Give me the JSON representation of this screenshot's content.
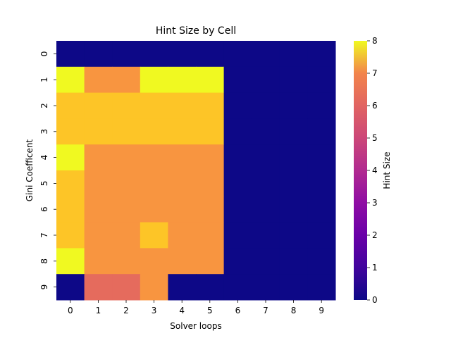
{
  "chart_data": {
    "type": "heatmap",
    "title": "Hint Size by Cell",
    "xlabel": "Solver loops",
    "ylabel": "Gini Coefficent",
    "x_categories": [
      "0",
      "1",
      "2",
      "3",
      "4",
      "5",
      "6",
      "7",
      "8",
      "9"
    ],
    "y_categories": [
      "0",
      "1",
      "2",
      "3",
      "4",
      "5",
      "6",
      "7",
      "8",
      "9"
    ],
    "values": [
      [
        0,
        0,
        0,
        0,
        0,
        0,
        0,
        0,
        0,
        0
      ],
      [
        8,
        6,
        6,
        8,
        8,
        8,
        0,
        0,
        0,
        0
      ],
      [
        7,
        7,
        7,
        7,
        7,
        7,
        0,
        0,
        0,
        0
      ],
      [
        7,
        7,
        7,
        7,
        7,
        7,
        0,
        0,
        0,
        0
      ],
      [
        8,
        6,
        6,
        6,
        6,
        6,
        0,
        0,
        0,
        0
      ],
      [
        7,
        6,
        6,
        6,
        6,
        6,
        0,
        0,
        0,
        0
      ],
      [
        7,
        6,
        6,
        6,
        6,
        6,
        0,
        0,
        0,
        0
      ],
      [
        7,
        6,
        6,
        7,
        6,
        6,
        0,
        0,
        0,
        0
      ],
      [
        8,
        6,
        6,
        6,
        6,
        6,
        0,
        0,
        0,
        0
      ],
      [
        0,
        5,
        5,
        6,
        0,
        0,
        0,
        0,
        0,
        0
      ]
    ],
    "colorbar": {
      "label": "Hint Size",
      "range": [
        0,
        8
      ],
      "ticks": [
        "0",
        "1",
        "2",
        "3",
        "4",
        "5",
        "6",
        "7",
        "8"
      ],
      "colormap": "plasma"
    },
    "grid": false,
    "legend": "colorbar-right"
  }
}
